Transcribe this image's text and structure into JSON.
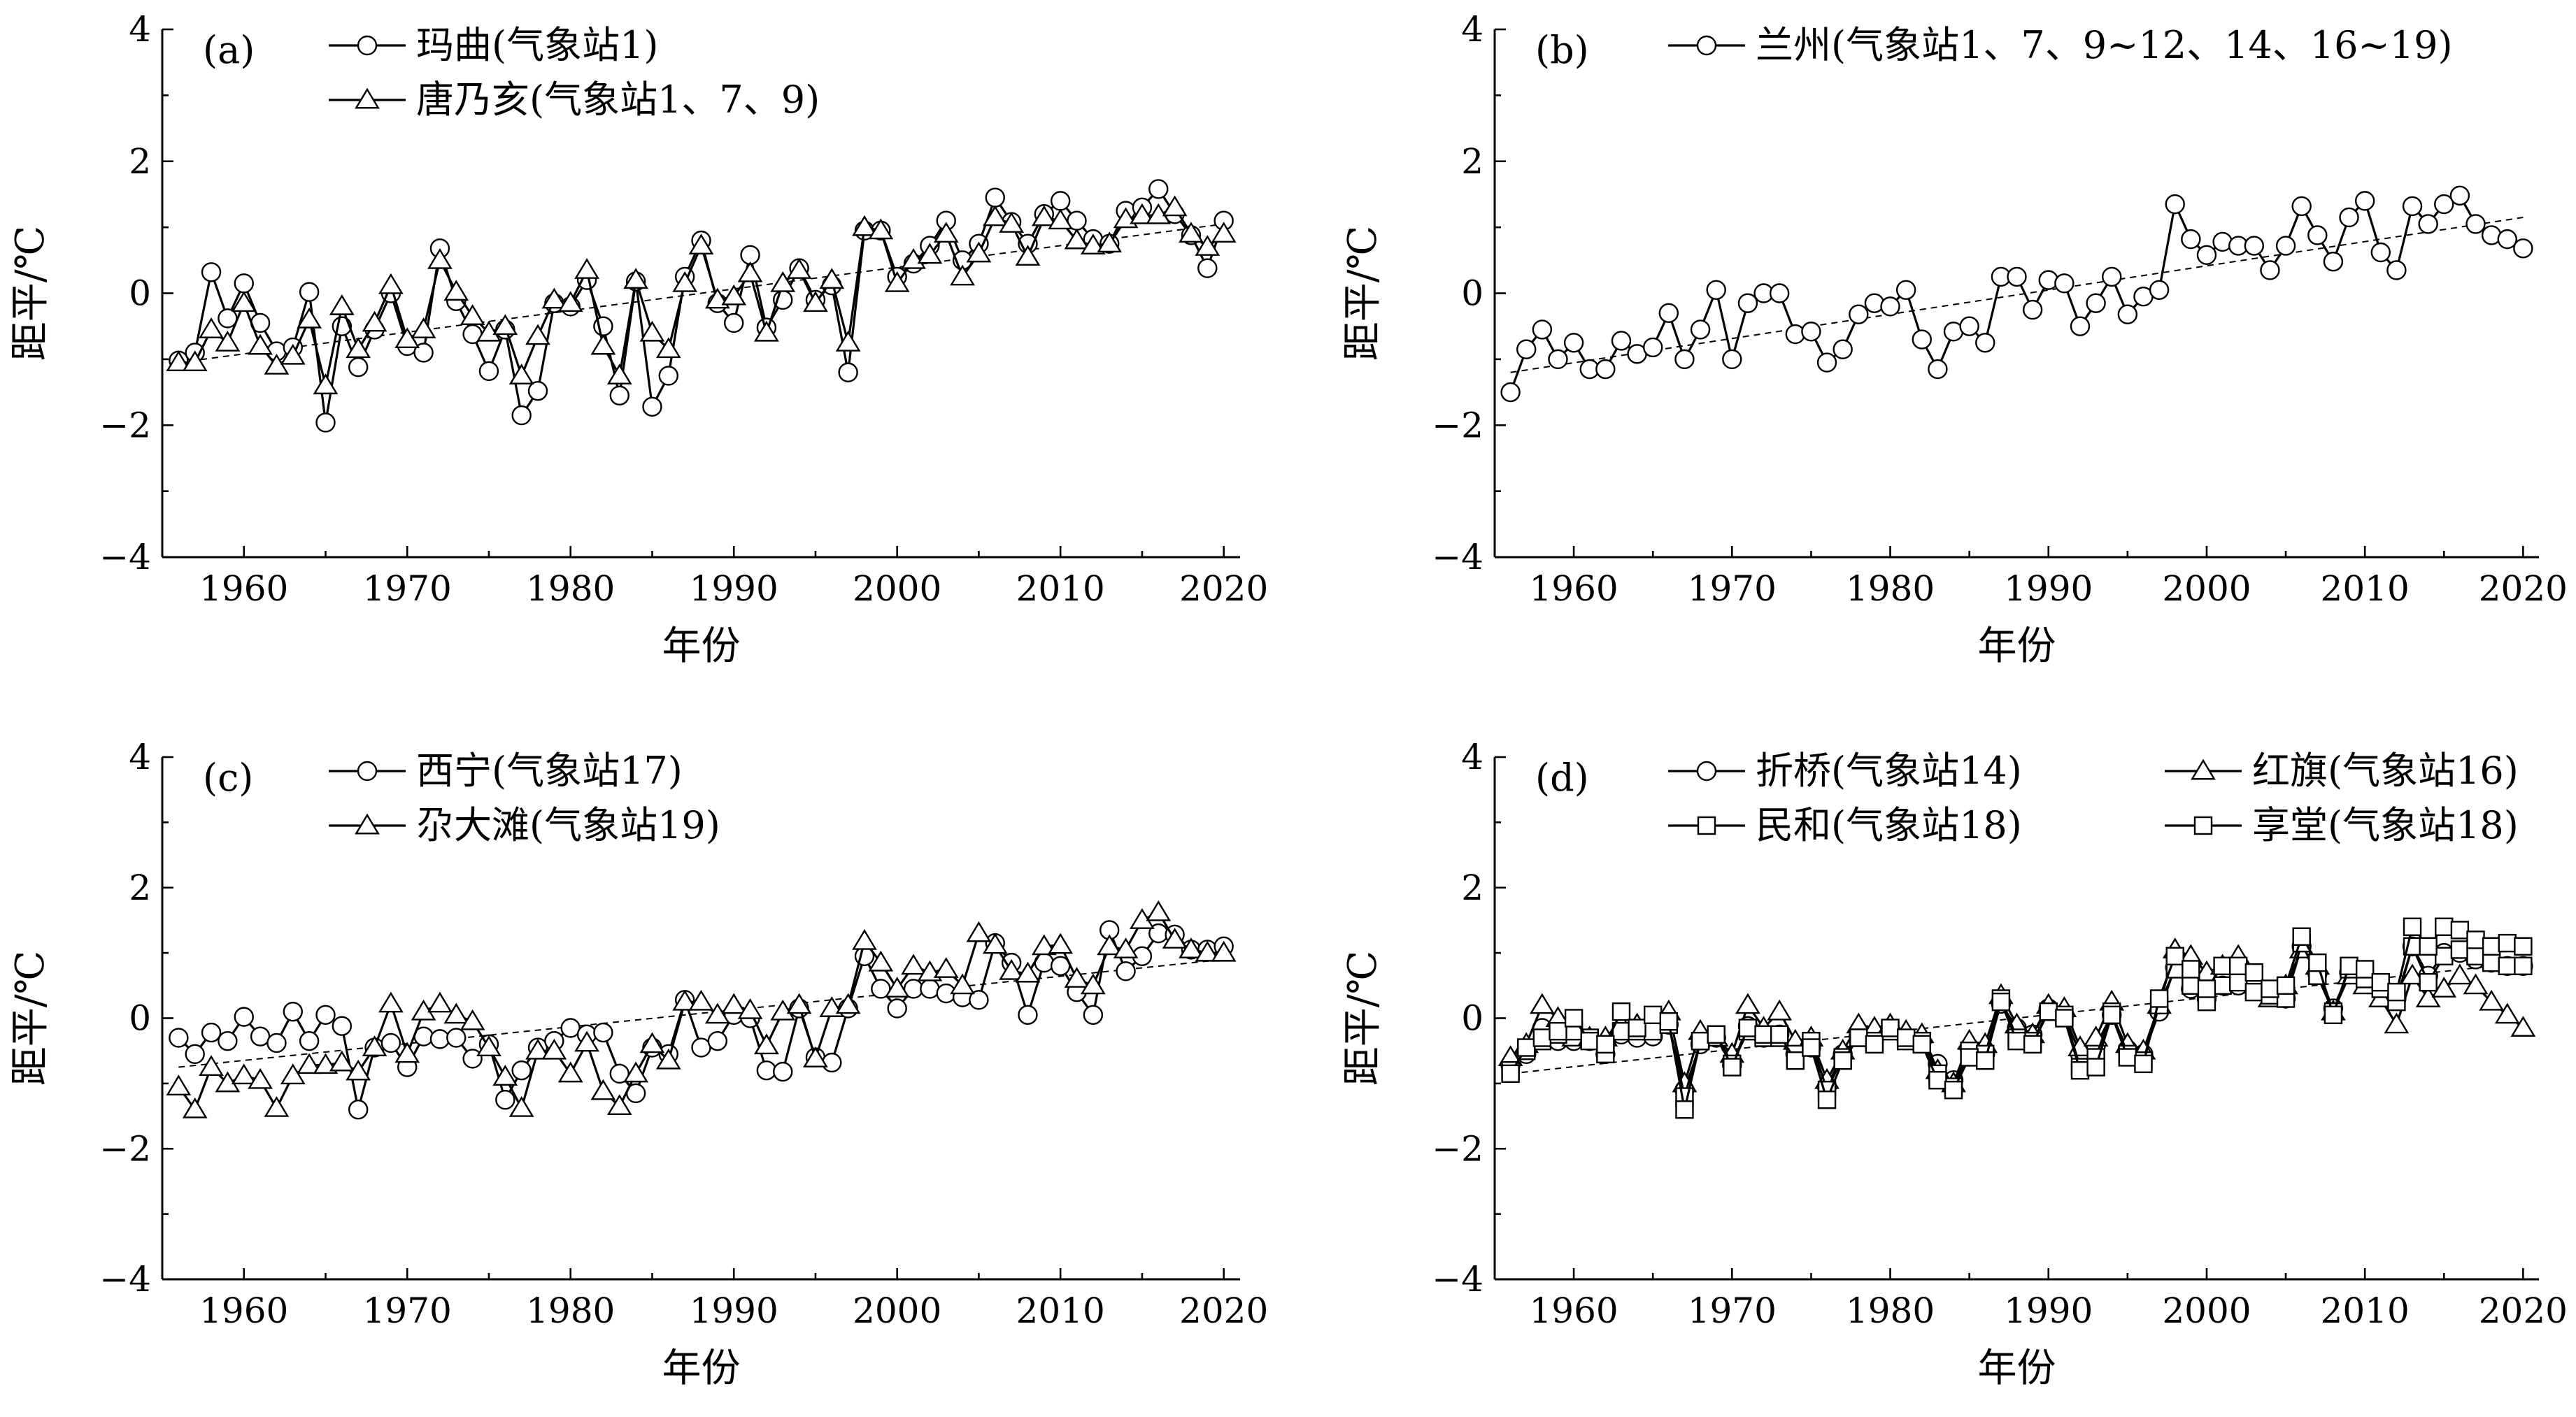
{
  "figure": {
    "panels": [
      "(a)",
      "(b)",
      "(c)",
      "(d)"
    ]
  },
  "chart_data": [
    {
      "type": "line",
      "panel_label": "(a)",
      "xlabel": "年份",
      "ylabel": "距平/℃",
      "xlim": [
        1955,
        2021
      ],
      "ylim": [
        -4,
        4
      ],
      "xticks": [
        "1960",
        "1970",
        "1980",
        "1990",
        "2000",
        "2010",
        "2020"
      ],
      "yticks": [
        "−4",
        "−2",
        "0",
        "2",
        "4"
      ],
      "legend_position": "top-left",
      "x_start": 1956,
      "series": [
        {
          "name": "玛曲(气象站1)",
          "marker": "circle",
          "values": [
            -1.02,
            -0.9,
            0.32,
            -0.38,
            0.15,
            -0.45,
            -0.88,
            -0.82,
            0.02,
            -1.96,
            -0.5,
            -1.12,
            -0.55,
            0.0,
            -0.8,
            -0.9,
            0.68,
            -0.12,
            -0.62,
            -1.18,
            -0.55,
            -1.85,
            -1.48,
            -0.15,
            -0.2,
            0.2,
            -0.5,
            -1.55,
            0.18,
            -1.72,
            -1.25,
            0.25,
            0.8,
            -0.15,
            -0.45,
            0.58,
            -0.52,
            -0.1,
            0.38,
            -0.1,
            0.12,
            -1.2,
            0.95,
            0.95,
            0.25,
            0.45,
            0.72,
            1.1,
            0.5,
            0.75,
            1.45,
            1.08,
            0.75,
            1.2,
            1.4,
            1.1,
            0.82,
            0.75,
            1.25,
            1.3,
            1.58,
            1.2,
            0.88,
            0.38,
            1.1
          ]
        },
        {
          "name": "唐乃亥(气象站1、7、9)",
          "marker": "triangle",
          "values": [
            -1.05,
            -1.05,
            -0.55,
            -0.75,
            -0.15,
            -0.8,
            -1.1,
            -0.95,
            -0.4,
            -1.4,
            -0.2,
            -0.85,
            -0.45,
            0.12,
            -0.7,
            -0.55,
            0.5,
            0.02,
            -0.35,
            -0.6,
            -0.5,
            -1.25,
            -0.65,
            -0.1,
            -0.15,
            0.35,
            -0.8,
            -1.25,
            0.2,
            -0.6,
            -0.85,
            0.15,
            0.72,
            -0.1,
            -0.05,
            0.3,
            -0.6,
            0.15,
            0.35,
            -0.15,
            0.2,
            -0.75,
            1.0,
            0.95,
            0.15,
            0.5,
            0.58,
            0.9,
            0.25,
            0.6,
            1.15,
            1.05,
            0.55,
            1.15,
            1.1,
            0.8,
            0.72,
            0.75,
            1.12,
            1.18,
            1.18,
            1.3,
            0.9,
            0.7,
            0.9
          ]
        }
      ],
      "trend": [
        -1.05,
        1.05
      ]
    },
    {
      "type": "line",
      "panel_label": "(b)",
      "xlabel": "年份",
      "ylabel": "距平/℃",
      "xlim": [
        1955,
        2021
      ],
      "ylim": [
        -4,
        4
      ],
      "xticks": [
        "1960",
        "1970",
        "1980",
        "1990",
        "2000",
        "2010",
        "2020"
      ],
      "yticks": [
        "−4",
        "−2",
        "0",
        "2",
        "4"
      ],
      "legend_position": "top",
      "x_start": 1956,
      "series": [
        {
          "name": "兰州(气象站1、7、9~12、14、16~19)",
          "marker": "circle",
          "values": [
            -1.5,
            -0.85,
            -0.55,
            -1.0,
            -0.75,
            -1.15,
            -1.15,
            -0.72,
            -0.92,
            -0.82,
            -0.3,
            -1.0,
            -0.55,
            0.05,
            -1.0,
            -0.15,
            0.0,
            0.0,
            -0.62,
            -0.58,
            -1.05,
            -0.85,
            -0.32,
            -0.15,
            -0.2,
            0.05,
            -0.7,
            -1.15,
            -0.58,
            -0.5,
            -0.75,
            0.25,
            0.25,
            -0.25,
            0.2,
            0.15,
            -0.5,
            -0.15,
            0.25,
            -0.32,
            -0.05,
            0.05,
            1.35,
            0.82,
            0.58,
            0.78,
            0.72,
            0.72,
            0.35,
            0.72,
            1.32,
            0.88,
            0.48,
            1.15,
            1.4,
            0.62,
            0.35,
            1.32,
            1.05,
            1.35,
            1.48,
            1.05,
            0.88,
            0.82,
            0.68
          ]
        }
      ],
      "trend": [
        -1.2,
        1.15
      ]
    },
    {
      "type": "line",
      "panel_label": "(c)",
      "xlabel": "年份",
      "ylabel": "距平/℃",
      "xlim": [
        1955,
        2021
      ],
      "ylim": [
        -4,
        4
      ],
      "xticks": [
        "1960",
        "1970",
        "1980",
        "1990",
        "2000",
        "2010",
        "2020"
      ],
      "yticks": [
        "−4",
        "−2",
        "0",
        "2",
        "4"
      ],
      "legend_position": "top-left",
      "x_start": 1956,
      "series": [
        {
          "name": "西宁(气象站17)",
          "marker": "circle",
          "values": [
            -0.3,
            -0.55,
            -0.22,
            -0.35,
            0.02,
            -0.28,
            -0.38,
            0.1,
            -0.35,
            0.05,
            -0.12,
            -1.4,
            -0.45,
            -0.38,
            -0.75,
            -0.28,
            -0.32,
            -0.3,
            -0.62,
            -0.4,
            -1.25,
            -0.8,
            -0.45,
            -0.35,
            -0.15,
            -0.25,
            -0.22,
            -0.85,
            -1.15,
            -0.45,
            -0.55,
            0.28,
            -0.45,
            -0.35,
            0.05,
            0.0,
            -0.8,
            -0.82,
            0.15,
            -0.6,
            -0.68,
            0.15,
            0.95,
            0.45,
            0.15,
            0.45,
            0.45,
            0.38,
            0.32,
            0.28,
            1.15,
            0.85,
            0.05,
            0.85,
            0.8,
            0.4,
            0.05,
            1.35,
            0.72,
            0.95,
            1.3,
            1.28,
            1.05,
            1.05,
            1.1
          ]
        },
        {
          "name": "尕大滩(气象站19)",
          "marker": "triangle",
          "values": [
            -1.05,
            -1.4,
            -0.75,
            -1.0,
            -0.88,
            -0.95,
            -1.38,
            -0.88,
            -0.72,
            -0.72,
            -0.68,
            -0.82,
            -0.45,
            0.22,
            -0.55,
            0.1,
            0.22,
            0.05,
            -0.05,
            -0.45,
            -0.9,
            -1.38,
            -0.5,
            -0.5,
            -0.85,
            -0.38,
            -1.12,
            -1.35,
            -0.85,
            -0.4,
            -0.65,
            0.25,
            0.25,
            0.05,
            0.2,
            0.12,
            -0.42,
            0.1,
            0.2,
            -0.62,
            0.15,
            0.2,
            1.18,
            0.85,
            0.45,
            0.8,
            0.7,
            0.75,
            0.5,
            1.3,
            1.12,
            0.72,
            0.68,
            1.1,
            1.12,
            0.6,
            0.5,
            1.1,
            1.05,
            1.5,
            1.62,
            1.2,
            1.05,
            1.0,
            1.0
          ]
        }
      ],
      "trend": [
        -0.75,
        0.9
      ]
    },
    {
      "type": "line",
      "panel_label": "(d)",
      "xlabel": "年份",
      "ylabel": "距平/℃",
      "xlim": [
        1955,
        2021
      ],
      "ylim": [
        -4,
        4
      ],
      "xticks": [
        "1960",
        "1970",
        "1980",
        "1990",
        "2000",
        "2010",
        "2020"
      ],
      "yticks": [
        "−4",
        "−2",
        "0",
        "2",
        "4"
      ],
      "legend_position": "top",
      "x_start": 1956,
      "series": [
        {
          "name": "折桥(气象站14)",
          "marker": "circle",
          "values": [
            -0.72,
            -0.55,
            -0.15,
            -0.35,
            -0.35,
            -0.35,
            -0.55,
            -0.25,
            -0.3,
            -0.28,
            -0.1,
            -1.1,
            -0.4,
            -0.3,
            -0.72,
            -0.12,
            -0.3,
            -0.25,
            -0.55,
            -0.45,
            -1.05,
            -0.55,
            -0.28,
            -0.3,
            -0.18,
            -0.3,
            -0.35,
            -0.7,
            -0.95,
            -0.45,
            -0.55,
            0.22,
            -0.15,
            -0.25,
            0.15,
            0.05,
            -0.55,
            -0.42,
            0.05,
            -0.48,
            -0.55,
            0.1,
            0.78,
            0.45,
            0.3,
            0.5,
            0.5,
            0.45,
            0.35,
            0.3,
            1.1,
            0.68,
            0.15,
            0.7,
            0.62,
            0.5,
            0.3,
            1.1,
            0.65,
            1.0,
            1.0,
            0.9,
            0.85,
            0.8,
            0.8
          ]
        },
        {
          "name": "红旗(气象站16)",
          "marker": "triangle",
          "values": [
            -0.6,
            -0.4,
            0.2,
            0.0,
            -0.3,
            -0.3,
            -0.3,
            -0.1,
            -0.1,
            0.0,
            0.1,
            -1.0,
            -0.2,
            -0.3,
            -0.55,
            0.2,
            -0.15,
            0.1,
            -0.35,
            -0.3,
            -0.95,
            -0.5,
            -0.1,
            -0.15,
            -0.1,
            -0.2,
            -0.25,
            -0.8,
            -1.0,
            -0.35,
            -0.4,
            0.35,
            -0.1,
            -0.25,
            0.2,
            0.15,
            -0.45,
            -0.3,
            0.25,
            -0.4,
            -0.5,
            0.2,
            1.05,
            0.95,
            0.7,
            0.8,
            0.95,
            0.6,
            0.3,
            0.5,
            1.05,
            0.8,
            0.1,
            0.65,
            0.5,
            0.3,
            -0.1,
            0.65,
            0.3,
            0.45,
            0.65,
            0.5,
            0.25,
            0.05,
            -0.15
          ]
        },
        {
          "name": "民和(气象站18)",
          "marker": "square",
          "values": [
            -0.8,
            -0.5,
            -0.35,
            -0.25,
            -0.2,
            -0.3,
            -0.55,
            -0.2,
            -0.2,
            -0.2,
            -0.1,
            -1.2,
            -0.35,
            -0.25,
            -0.7,
            -0.2,
            -0.3,
            -0.3,
            -0.55,
            -0.35,
            -1.1,
            -0.6,
            -0.3,
            -0.35,
            -0.2,
            -0.35,
            -0.35,
            -0.85,
            -1.05,
            -0.5,
            -0.55,
            0.3,
            -0.3,
            -0.35,
            0.1,
            0.05,
            -0.75,
            -0.6,
            0.1,
            -0.55,
            -0.65,
            0.2,
            0.75,
            0.5,
            0.25,
            0.5,
            0.55,
            0.4,
            0.35,
            0.3,
            1.15,
            0.65,
            0.1,
            0.75,
            0.6,
            0.45,
            0.25,
            1.1,
            0.55,
            0.95,
            1.05,
            0.95,
            0.85,
            0.8,
            0.8
          ]
        },
        {
          "name": "享堂(气象站18)",
          "marker": "square",
          "values": [
            -0.85,
            -0.45,
            -0.3,
            -0.2,
            0.0,
            -0.35,
            -0.4,
            0.1,
            -0.15,
            0.05,
            -0.05,
            -1.4,
            -0.35,
            -0.25,
            -0.75,
            -0.15,
            -0.25,
            -0.25,
            -0.65,
            -0.45,
            -1.25,
            -0.65,
            -0.3,
            -0.4,
            -0.15,
            -0.3,
            -0.4,
            -0.95,
            -1.1,
            -0.6,
            -0.65,
            0.25,
            -0.35,
            -0.4,
            0.1,
            0.0,
            -0.8,
            -0.75,
            0.05,
            -0.6,
            -0.7,
            0.3,
            0.95,
            0.75,
            0.45,
            0.8,
            0.8,
            0.7,
            0.45,
            0.5,
            1.25,
            0.85,
            0.05,
            0.8,
            0.75,
            0.55,
            0.4,
            1.4,
            1.1,
            1.4,
            1.35,
            1.2,
            1.1,
            1.15,
            1.1
          ]
        }
      ],
      "trend": [
        -0.85,
        0.85
      ]
    }
  ]
}
